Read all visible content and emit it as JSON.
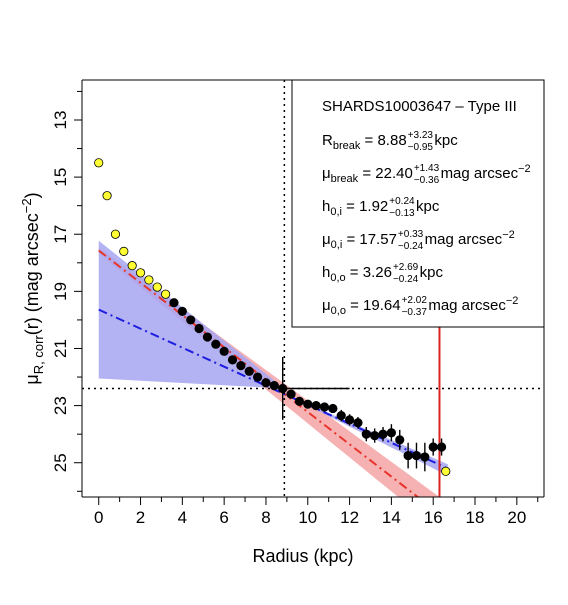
{
  "chart_data": {
    "type": "scatter",
    "xlabel": "Radius (kpc)",
    "ylabel": "μ_R, corr(r) (mag arcsec^-2)",
    "ylabel_parts": {
      "mu": "μ",
      "sub": "R, corr",
      "rest": "(r) (mag arcsec",
      "exp": "−2",
      "close": ")"
    },
    "xlim": [
      -0.8,
      21.3
    ],
    "ylim": [
      26.2,
      11.6
    ],
    "x_ticks": [
      0,
      2,
      4,
      6,
      8,
      10,
      12,
      14,
      16,
      18,
      20
    ],
    "y_ticks": [
      13,
      15,
      17,
      19,
      21,
      23,
      25
    ],
    "grid": false,
    "break_radius": 8.88,
    "mu_break": 22.4,
    "outer_limit_radius": 16.3,
    "inner_fit": {
      "mu0": 17.57,
      "h": 1.92,
      "band_halfwidth": [
        0.1,
        0.6
      ]
    },
    "outer_fit": {
      "mu0": 19.64,
      "h": 3.26,
      "band_lower_at0": 22.05
    },
    "excluded_points": {
      "x": [
        0.0,
        0.4,
        0.8,
        1.2,
        1.6,
        2.0,
        2.4,
        2.8,
        3.2,
        16.6
      ],
      "y": [
        14.5,
        15.65,
        17.0,
        17.6,
        18.1,
        18.35,
        18.6,
        18.85,
        19.1,
        25.3
      ]
    },
    "fitted_points": {
      "x": [
        3.6,
        4.0,
        4.4,
        4.8,
        5.2,
        5.6,
        6.0,
        6.4,
        6.8,
        7.2,
        7.6,
        8.0,
        8.4,
        8.8,
        9.2,
        9.6,
        10.0,
        10.4,
        10.8,
        11.2,
        11.6,
        12.0,
        12.4,
        12.8,
        13.2,
        13.6,
        14.0,
        14.4,
        14.8,
        15.2,
        15.6,
        16.0,
        16.4
      ],
      "y": [
        19.4,
        19.7,
        20.0,
        20.3,
        20.6,
        20.85,
        21.1,
        21.4,
        21.6,
        21.8,
        22.0,
        22.2,
        22.3,
        22.4,
        22.6,
        22.85,
        22.95,
        23.0,
        23.05,
        23.1,
        23.35,
        23.5,
        23.6,
        24.0,
        24.05,
        24.0,
        23.95,
        24.2,
        24.75,
        24.75,
        24.8,
        24.45,
        24.45
      ],
      "yerr": [
        0.1,
        0.1,
        0.1,
        0.1,
        0.1,
        0.1,
        0.1,
        0.1,
        0.1,
        0.1,
        0.1,
        0.1,
        0.1,
        1.1,
        0.15,
        0.15,
        0.15,
        0.15,
        0.15,
        0.15,
        0.2,
        0.2,
        0.2,
        0.25,
        0.25,
        0.25,
        0.3,
        0.35,
        0.45,
        0.45,
        0.5,
        0.3,
        0.3
      ]
    },
    "break_hbar": {
      "y": 22.4,
      "x": [
        8.88,
        12.0
      ]
    },
    "legend_box": {
      "title": "SHARDS10003647  –  Type III",
      "lines": [
        {
          "pre": "R",
          "sub": "break",
          "mid": " = 8.88",
          "sup": "+3.23",
          "inf": "−0.95",
          "post": " kpc",
          "post_exp": ""
        },
        {
          "pre": "μ",
          "sub": "break",
          "mid": " = 22.40",
          "sup": "+1.43",
          "inf": "−0.36",
          "post": " mag arcsec",
          "post_exp": "−2"
        },
        {
          "pre": "h",
          "sub": "0,i",
          "mid": " = 1.92",
          "sup": "+0.24",
          "inf": "−0.13",
          "post": " kpc",
          "post_exp": ""
        },
        {
          "pre": "μ",
          "sub": "0,i",
          "mid": " = 17.57",
          "sup": "+0.33",
          "inf": "−0.24",
          "post": " mag arcsec",
          "post_exp": "−2"
        },
        {
          "pre": "h",
          "sub": "0,o",
          "mid": " = 3.26",
          "sup": "+2.69",
          "inf": "−0.24",
          "post": " kpc",
          "post_exp": ""
        },
        {
          "pre": "μ",
          "sub": "0,o",
          "mid": " = 19.64",
          "sup": "+2.02",
          "inf": "−0.37",
          "post": " mag arcsec",
          "post_exp": "−2"
        }
      ]
    },
    "colors": {
      "inner_line": "#e8332a",
      "inner_band": "#f4a4a6",
      "outer_line": "#1d1ddf",
      "outer_band": "#a6a6f2",
      "excluded_fill": "#ffff33",
      "fitted_fill": "#000000",
      "limit_line": "#dd2222"
    }
  }
}
